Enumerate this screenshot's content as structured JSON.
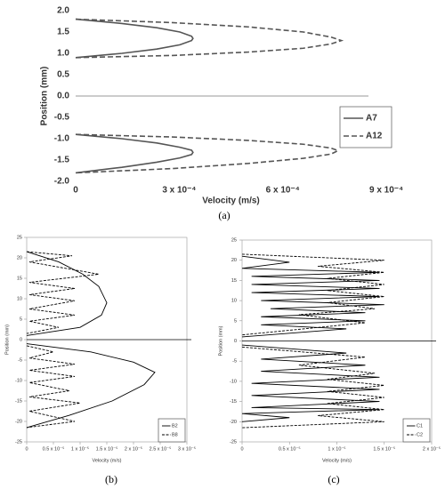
{
  "chart_data": [
    {
      "type": "line",
      "caption": "(a)",
      "xlabel": "Velocity (m/s)",
      "ylabel": "Position (mm)",
      "xlim": [
        0,
        0.0009
      ],
      "ylim": [
        -2,
        2
      ],
      "xticks": [
        0,
        {
          "value": 0.0003,
          "label": "3 x 10⁻⁴"
        },
        {
          "value": 0.0006,
          "label": "6 x 10⁻⁴"
        },
        {
          "value": 0.0009,
          "label": "9 x 10⁻⁴"
        }
      ],
      "yticks": [
        {
          "value": 2,
          "label": "2.0"
        },
        1.5,
        {
          "value": 1,
          "label": "1.0"
        },
        0.5,
        {
          "value": 0,
          "label": "0.0"
        },
        -0.5,
        {
          "value": -1,
          "label": "-1.0"
        },
        -1.5,
        {
          "value": -2,
          "label": "-2.0"
        }
      ],
      "frame": false,
      "legend": "right",
      "series": [
        {
          "name": "A7",
          "color": "#555555",
          "linestyle": "solid",
          "x": [
            0,
            0.000134,
            0.000235,
            0.000302,
            0.000336,
            0.00034,
            0.000336,
            0.000302,
            0.000235,
            0.000134,
            0,
            null,
            0,
            0.000134,
            0.000235,
            0.000302,
            0.000336,
            0.00034,
            0.000336,
            0.000302,
            0.000235,
            0.000134,
            0
          ],
          "values": [
            1.8,
            1.7,
            1.6,
            1.5,
            1.4,
            1.35,
            1.3,
            1.2,
            1.1,
            1.0,
            0.9,
            null,
            -0.9,
            -1.0,
            -1.1,
            -1.2,
            -1.27,
            -1.32,
            -1.37,
            -1.45,
            -1.55,
            -1.67,
            -1.8
          ]
        },
        {
          "name": "A12",
          "color": "#555555",
          "linestyle": "dashed",
          "x": [
            0,
            0.00028,
            0.0005,
            0.00066,
            0.00074,
            0.00077,
            0.00074,
            0.00066,
            0.0005,
            0.00028,
            0,
            null,
            0,
            0.00028,
            0.0005,
            0.00066,
            0.00074,
            0.00076,
            0.00074,
            0.00066,
            0.0005,
            0.00028,
            0
          ],
          "values": [
            1.8,
            1.72,
            1.62,
            1.5,
            1.38,
            1.3,
            1.22,
            1.12,
            1.03,
            0.95,
            0.9,
            null,
            -0.9,
            -0.96,
            -1.04,
            -1.13,
            -1.22,
            -1.28,
            -1.36,
            -1.46,
            -1.58,
            -1.7,
            -1.8
          ]
        }
      ]
    },
    {
      "type": "line",
      "caption": "(b)",
      "xlabel": "Velocity (m/s)",
      "ylabel": "Position (mm)",
      "xlim": [
        0,
        3e-05
      ],
      "ylim": [
        -25,
        25
      ],
      "xticks": [
        0,
        {
          "value": 5e-06,
          "label": "0.5 x 10⁻⁵"
        },
        {
          "value": 1e-05,
          "label": "1 x 10⁻⁵"
        },
        {
          "value": 1.5e-05,
          "label": "1.5 x 10⁻⁵"
        },
        {
          "value": 2e-05,
          "label": "2 x 10⁻⁵"
        },
        {
          "value": 2.5e-05,
          "label": "2.5 x 10⁻⁵"
        },
        {
          "value": 3e-05,
          "label": "3 x 10⁻⁵"
        }
      ],
      "yticks": [
        25,
        20,
        15,
        10,
        5,
        0,
        -5,
        -10,
        -15,
        -20,
        -25
      ],
      "frame": true,
      "legend": "lower right",
      "series": [
        {
          "name": "B2",
          "color": "#000000",
          "linestyle": "solid",
          "x": [
            0,
            6e-06,
            1.05e-05,
            1.35e-05,
            1.5e-05,
            1.4e-05,
            1e-05,
            0,
            null,
            0,
            1.2e-05,
            2e-05,
            2.4e-05,
            2.2e-05,
            1.6e-05,
            8e-06,
            0
          ],
          "values": [
            21.5,
            19,
            16,
            13,
            9,
            6,
            3,
            1,
            null,
            -1,
            -3,
            -5.5,
            -8,
            -11,
            -15,
            -18.5,
            -21.5
          ]
        },
        {
          "name": "B8",
          "color": "#000000",
          "linestyle": "dashed",
          "x": [
            0,
            8.5e-06,
            5e-07,
            1.35e-05,
            5e-07,
            9e-06,
            5e-07,
            9e-06,
            5e-07,
            9e-06,
            5e-07,
            6e-06,
            0,
            null,
            0,
            5e-06,
            5e-07,
            9e-06,
            5e-07,
            9e-06,
            5e-07,
            8e-06,
            5e-07,
            1e-05,
            5e-07,
            9e-06,
            0
          ],
          "values": [
            21.5,
            20.5,
            19,
            16,
            14,
            12.5,
            11,
            9.5,
            7.5,
            6,
            4.5,
            3,
            1.5,
            null,
            -1.5,
            -3,
            -4.5,
            -6,
            -7.5,
            -9,
            -10.5,
            -12.5,
            -14,
            -15.5,
            -17.5,
            -20,
            -21.5
          ]
        }
      ]
    },
    {
      "type": "line",
      "caption": "(c)",
      "xlabel": "Velocity (m/s)",
      "ylabel": "Position (mm)",
      "xlim": [
        0,
        2e-05
      ],
      "ylim": [
        -25,
        25
      ],
      "xticks": [
        0,
        {
          "value": 5e-06,
          "label": "0.5 x 10⁻⁵"
        },
        {
          "value": 1e-05,
          "label": "1 x 10⁻⁵"
        },
        {
          "value": 1.5e-05,
          "label": "1.5 x 10⁻⁵"
        },
        {
          "value": 2e-05,
          "label": "2 x 10⁻⁵"
        }
      ],
      "yticks": [
        25,
        20,
        15,
        10,
        5,
        0,
        -5,
        -10,
        -15,
        -20,
        -25
      ],
      "frame": true,
      "legend": "lower right",
      "series": [
        {
          "name": "C1",
          "color": "#000000",
          "linestyle": "solid",
          "x": [
            0,
            5e-06,
            0,
            1.45e-05,
            1e-06,
            1.45e-05,
            1e-06,
            1.45e-05,
            1e-06,
            1.45e-05,
            2e-06,
            1.5e-05,
            3e-06,
            1.3e-05,
            2e-06,
            1.3e-05,
            2e-06,
            1.1e-05,
            0,
            null,
            0,
            1.1e-05,
            2e-06,
            1.3e-05,
            2e-06,
            1.45e-05,
            1e-06,
            1.45e-05,
            1e-06,
            1.45e-05,
            1e-06,
            1.45e-05,
            0,
            5e-06,
            0
          ],
          "values": [
            21,
            19.5,
            18,
            17,
            16,
            15,
            14,
            13,
            12,
            11,
            10,
            9,
            8,
            7,
            6,
            5,
            4,
            3,
            1,
            null,
            -1,
            -3,
            -4.5,
            -6,
            -7.5,
            -9,
            -10.5,
            -12,
            -13.5,
            -15,
            -16.5,
            -17,
            -18,
            -19,
            -20
          ]
        },
        {
          "name": "C2",
          "color": "#000000",
          "linestyle": "dashed",
          "x": [
            0,
            1.5e-05,
            8e-06,
            1.5e-05,
            9e-06,
            1.5e-05,
            9e-06,
            1.5e-05,
            9e-06,
            1.4e-05,
            6e-06,
            1.3e-05,
            0,
            null,
            0,
            1.3e-05,
            6e-06,
            1.4e-05,
            9e-06,
            1.5e-05,
            9e-06,
            1.5e-05,
            9e-06,
            1.5e-05,
            8e-06,
            1.5e-05,
            0
          ],
          "values": [
            21.5,
            20,
            18.5,
            17,
            15.5,
            14,
            12.5,
            11,
            9.5,
            8,
            6.5,
            4.5,
            1.5,
            null,
            -1.5,
            -4,
            -6,
            -8,
            -9.5,
            -11,
            -12.5,
            -14,
            -15.5,
            -17,
            -18.5,
            -20,
            -21.5
          ]
        }
      ]
    }
  ]
}
